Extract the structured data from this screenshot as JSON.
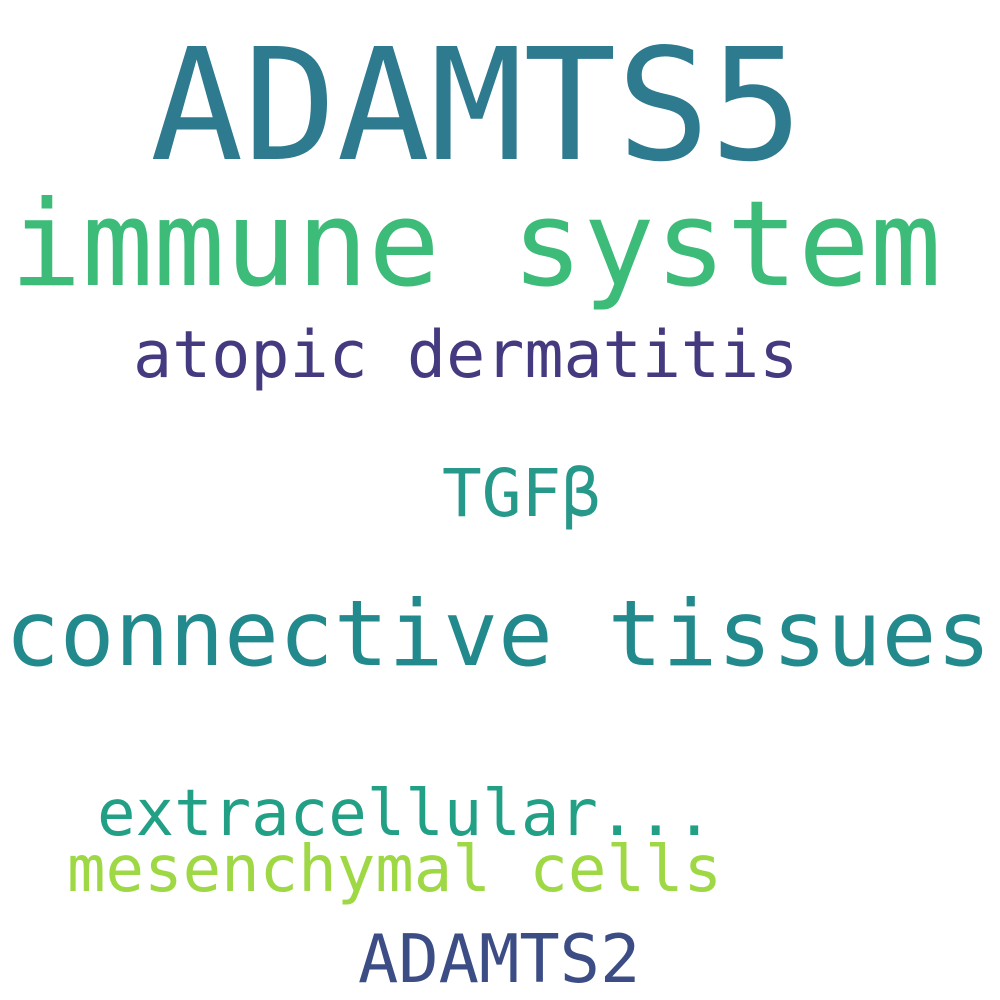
{
  "words": [
    {
      "text": "ADAMTS5",
      "color": "#2e7a8f"
    },
    {
      "text": "immune system",
      "color": "#3dbb79"
    },
    {
      "text": "atopic dermatitis",
      "color": "#433a80"
    },
    {
      "text": "TGFβ",
      "color": "#26998a"
    },
    {
      "text": "connective tissues",
      "color": "#228a8c"
    },
    {
      "text": "extracellular...",
      "color": "#22a085"
    },
    {
      "text": "mesenchymal cells",
      "color": "#9fd845"
    },
    {
      "text": "ADAMTS2",
      "color": "#3c4d86"
    }
  ]
}
